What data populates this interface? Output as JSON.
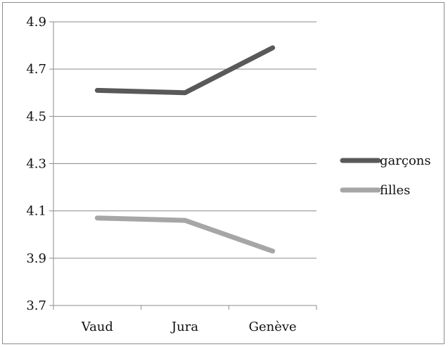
{
  "chart_data": {
    "type": "line",
    "categories": [
      "Vaud",
      "Jura",
      "Genève"
    ],
    "series": [
      {
        "name": "garçons",
        "values": [
          4.61,
          4.6,
          4.79
        ],
        "color": "#595959"
      },
      {
        "name": "filles",
        "values": [
          4.07,
          4.06,
          3.93
        ],
        "color": "#a6a6a6"
      }
    ],
    "ylim": [
      3.7,
      4.9
    ],
    "yticks": [
      "3.7",
      "3.9",
      "4.1",
      "4.3",
      "4.5",
      "4.7",
      "4.9"
    ],
    "ytick_values": [
      3.7,
      3.9,
      4.1,
      4.3,
      4.5,
      4.7,
      4.9
    ],
    "grid": true,
    "legend": "right",
    "title": "",
    "xlabel": "",
    "ylabel": ""
  }
}
